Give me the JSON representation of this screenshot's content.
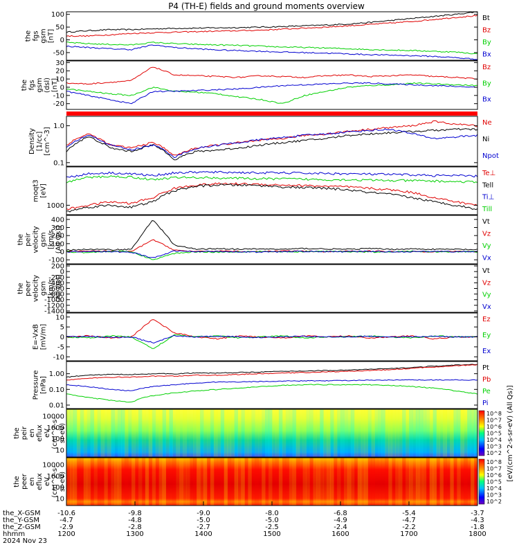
{
  "title": "P4 (TH-E) fields and ground moments overview",
  "date_label": "2024 Nov 23",
  "colors": {
    "black": "#000000",
    "red": "#e00000",
    "green": "#00d000",
    "blue": "#0000d0"
  },
  "xaxis": {
    "row_labels": [
      "the_X-GSM",
      "the_Y-GSM",
      "the_Z-GSM",
      "hhmm"
    ],
    "columns": [
      [
        "-10.6",
        "-4.7",
        "-2.9",
        "1200"
      ],
      [
        "-9.8",
        "-4.8",
        "-2.8",
        "1300"
      ],
      [
        "-9.0",
        "-5.0",
        "-2.7",
        "1400"
      ],
      [
        "-8.0",
        "-5.0",
        "-2.5",
        "1500"
      ],
      [
        "-6.8",
        "-4.9",
        "-2.4",
        "1600"
      ],
      [
        "-5.4",
        "-4.7",
        "-2.2",
        "1700"
      ],
      [
        "-3.7",
        "-4.3",
        "-1.8",
        "1800"
      ]
    ]
  },
  "chart_data": [
    {
      "type": "line",
      "ylabel": [
        "the",
        "fgs",
        "gsm",
        "[nT]"
      ],
      "ylim": [
        -80,
        110
      ],
      "ticks": [
        "100",
        "50",
        "0",
        "-50"
      ],
      "tick_values": [
        100,
        50,
        0,
        -50
      ],
      "series": [
        {
          "name": "Bt",
          "color": "#000000",
          "values": [
            30,
            36,
            40,
            40,
            43,
            45,
            46,
            47,
            48,
            50,
            52,
            55,
            58,
            62,
            68,
            76,
            84,
            92,
            100,
            110
          ]
        },
        {
          "name": "Bz",
          "color": "#e00000",
          "values": [
            15,
            15,
            20,
            25,
            28,
            30,
            32,
            34,
            36,
            38,
            42,
            46,
            50,
            55,
            60,
            66,
            72,
            80,
            88,
            95
          ]
        },
        {
          "name": "By",
          "color": "#00d000",
          "values": [
            -10,
            -15,
            -18,
            -20,
            -10,
            -15,
            -18,
            -20,
            -22,
            -25,
            -28,
            -30,
            -32,
            -35,
            -38,
            -40,
            -42,
            -45,
            -48,
            -55
          ]
        },
        {
          "name": "Bx",
          "color": "#0000d0",
          "values": [
            -25,
            -30,
            -35,
            -38,
            -20,
            -30,
            -35,
            -40,
            -42,
            -45,
            -48,
            -50,
            -52,
            -55,
            -58,
            -60,
            -62,
            -65,
            -70,
            -76
          ]
        }
      ]
    },
    {
      "type": "line",
      "ylabel": [
        "the",
        "fgs",
        "gsm",
        "(dsl)",
        "[nT]"
      ],
      "ylim": [
        -27,
        32
      ],
      "ticks": [
        "30",
        "20",
        "10",
        "0",
        "-10",
        "-20"
      ],
      "tick_values": [
        30,
        20,
        10,
        0,
        -10,
        -20
      ],
      "series": [
        {
          "name": "Bz",
          "color": "#e00000",
          "values": [
            5,
            4,
            6,
            8,
            25,
            15,
            14,
            13,
            12,
            14,
            13,
            12,
            14,
            15,
            13,
            14,
            15,
            13,
            12,
            10
          ]
        },
        {
          "name": "By",
          "color": "#00d000",
          "values": [
            -2,
            -5,
            -8,
            -10,
            0,
            -5,
            -6,
            -8,
            -12,
            -15,
            -20,
            -10,
            -5,
            0,
            2,
            3,
            5,
            4,
            3,
            2
          ]
        },
        {
          "name": "Bx",
          "color": "#0000d0",
          "values": [
            -5,
            -10,
            -15,
            -20,
            -5,
            -5,
            -4,
            -3,
            -2,
            0,
            2,
            3,
            4,
            5,
            5,
            4,
            3,
            2,
            1,
            0
          ]
        }
      ]
    },
    {
      "type": "line",
      "ylabel": [
        "Density",
        "[1/cc]",
        "[cm^-3]"
      ],
      "scale": "log",
      "ylim": [
        0.08,
        1.8
      ],
      "ticks": [
        "1.0",
        "0.1"
      ],
      "tick_values": [
        1.0,
        0.1
      ],
      "series": [
        {
          "name": "Ne",
          "color": "#e00000",
          "values": [
            0.3,
            0.6,
            0.3,
            0.25,
            0.35,
            0.15,
            0.25,
            0.3,
            0.35,
            0.4,
            0.45,
            0.55,
            0.6,
            0.7,
            0.8,
            0.9,
            1.0,
            1.3,
            1.1,
            1.0
          ]
        },
        {
          "name": "Ni",
          "color": "#000000",
          "values": [
            0.2,
            0.5,
            0.25,
            0.2,
            0.3,
            0.12,
            0.2,
            0.22,
            0.25,
            0.3,
            0.35,
            0.4,
            0.45,
            0.55,
            0.6,
            0.65,
            0.7,
            0.75,
            0.8,
            0.8
          ]
        },
        {
          "name": "Npot",
          "color": "#0000d0",
          "values": [
            0.25,
            0.55,
            0.3,
            0.22,
            0.3,
            0.14,
            0.24,
            0.3,
            0.35,
            0.42,
            0.48,
            0.55,
            0.6,
            0.68,
            0.75,
            0.8,
            0.6,
            0.45,
            0.5,
            0.55
          ]
        }
      ]
    },
    {
      "type": "line",
      "ylabel": [
        "moqt3",
        "[eV]"
      ],
      "scale": "log",
      "ylim": [
        600,
        8000
      ],
      "ticks": [
        "1000"
      ],
      "tick_values": [
        1000
      ],
      "series": [
        {
          "name": "Te⊥",
          "color": "#e00000",
          "values": [
            800,
            1000,
            1200,
            1100,
            1500,
            2500,
            3000,
            3200,
            3200,
            3100,
            3000,
            2900,
            2800,
            2700,
            2500,
            2300,
            2000,
            1500,
            1200,
            1000
          ]
        },
        {
          "name": "Tell",
          "color": "#000000",
          "values": [
            700,
            900,
            1000,
            900,
            1200,
            2200,
            2800,
            3000,
            3000,
            2900,
            2700,
            2600,
            2500,
            2300,
            2000,
            1800,
            1500,
            1200,
            1000,
            800
          ]
        },
        {
          "name": "Ti⊥",
          "color": "#0000d0",
          "values": [
            4500,
            5500,
            5800,
            5500,
            5000,
            5800,
            6000,
            6000,
            5900,
            5800,
            5800,
            5700,
            5600,
            5500,
            5400,
            5300,
            5200,
            5000,
            5000,
            4800
          ]
        },
        {
          "name": "Till",
          "color": "#00d000",
          "values": [
            3500,
            4500,
            4800,
            4600,
            4000,
            4500,
            4500,
            4400,
            4300,
            4200,
            4200,
            4100,
            4000,
            4000,
            3900,
            3800,
            3800,
            3700,
            3600,
            3500
          ]
        }
      ]
    },
    {
      "type": "line",
      "ylabel": [
        "the",
        "peir",
        "velocity",
        "gsm",
        "[km/s",
        "(All Qs)]"
      ],
      "ylim": [
        -150,
        450
      ],
      "ticks": [
        "400",
        "300",
        "200",
        "100",
        "0",
        "-100"
      ],
      "tick_values": [
        400,
        300,
        200,
        100,
        0,
        -100
      ],
      "series": [
        {
          "name": "Vt",
          "color": "#000000",
          "values": [
            20,
            30,
            25,
            30,
            400,
            80,
            30,
            40,
            30,
            35,
            30,
            40,
            35,
            30,
            40,
            30,
            35,
            30,
            30,
            25
          ]
        },
        {
          "name": "Vz",
          "color": "#e00000",
          "values": [
            0,
            10,
            5,
            0,
            150,
            20,
            0,
            10,
            5,
            0,
            10,
            5,
            0,
            5,
            10,
            0,
            5,
            0,
            5,
            0
          ]
        },
        {
          "name": "Vy",
          "color": "#00d000",
          "values": [
            0,
            -10,
            5,
            0,
            -100,
            -20,
            0,
            -5,
            0,
            5,
            -5,
            0,
            5,
            0,
            -5,
            0,
            5,
            0,
            0,
            0
          ]
        },
        {
          "name": "Vx",
          "color": "#0000d0",
          "values": [
            0,
            5,
            0,
            -5,
            -80,
            10,
            0,
            5,
            0,
            -5,
            0,
            5,
            0,
            0,
            5,
            0,
            0,
            5,
            0,
            0
          ]
        }
      ]
    },
    {
      "type": "line",
      "ylabel": [
        "the",
        "peer",
        "velocity",
        "gsm",
        "[km/s",
        "(All Qs)]"
      ],
      "ylim": [
        -1450,
        250
      ],
      "ticks": [
        "200",
        "0",
        "-200",
        "-400",
        "-600",
        "-800",
        "-1000",
        "-1200",
        "-1400"
      ],
      "tick_values": [
        200,
        0,
        -200,
        -400,
        -600,
        -800,
        -1000,
        -1200,
        -1400
      ],
      "series": [
        {
          "name": "Vt",
          "color": "#000000",
          "values": []
        },
        {
          "name": "Vz",
          "color": "#e00000",
          "values": []
        },
        {
          "name": "Vy",
          "color": "#00d000",
          "values": []
        },
        {
          "name": "Vx",
          "color": "#0000d0",
          "values": []
        }
      ]
    },
    {
      "type": "line",
      "ylabel": [
        "E=-VxB",
        "[mV/m]"
      ],
      "ylim": [
        -12,
        12
      ],
      "ticks": [
        "10",
        "5",
        "0",
        "-5",
        "-10"
      ],
      "tick_values": [
        10,
        5,
        0,
        -5,
        -10
      ],
      "series": [
        {
          "name": "Ez",
          "color": "#e00000",
          "values": [
            0,
            0.5,
            -0.5,
            0,
            9,
            2,
            0,
            -1,
            0.5,
            0,
            -0.5,
            0.5,
            0,
            0.5,
            -0.5,
            0,
            0.5,
            -1,
            0,
            0
          ]
        },
        {
          "name": "Ey",
          "color": "#00d000",
          "values": [
            0,
            -0.5,
            0.5,
            0,
            -6,
            1,
            0,
            0.5,
            -0.5,
            0,
            0.5,
            -0.5,
            0,
            0,
            0.5,
            0,
            -0.5,
            0.5,
            0,
            0
          ]
        },
        {
          "name": "Ex",
          "color": "#0000d0",
          "values": [
            0,
            0.3,
            -0.3,
            0,
            -3,
            0.5,
            0,
            0.3,
            0,
            -0.3,
            0,
            0.3,
            0,
            0,
            0.3,
            0,
            0,
            0.3,
            0,
            0
          ]
        }
      ]
    },
    {
      "type": "line",
      "ylabel": [
        "Pressure",
        "[nPa]"
      ],
      "scale": "log",
      "ylim": [
        0.006,
        6
      ],
      "ticks": [
        "1.00",
        "0.10",
        "0.01"
      ],
      "tick_values": [
        1.0,
        0.1,
        0.01
      ],
      "series": [
        {
          "name": "Pt",
          "color": "#000000",
          "values": [
            0.6,
            0.8,
            0.9,
            0.9,
            1.0,
            1.0,
            1.1,
            1.1,
            1.2,
            1.3,
            1.4,
            1.5,
            1.6,
            1.7,
            1.9,
            2.1,
            2.5,
            3.0,
            3.5,
            4.0
          ]
        },
        {
          "name": "Pb",
          "color": "#e00000",
          "values": [
            0.4,
            0.5,
            0.6,
            0.6,
            0.7,
            0.7,
            0.8,
            0.8,
            0.9,
            1.0,
            1.1,
            1.2,
            1.3,
            1.4,
            1.6,
            1.8,
            2.2,
            2.7,
            3.2,
            3.7
          ]
        },
        {
          "name": "Pe",
          "color": "#00d000",
          "values": [
            0.05,
            0.03,
            0.02,
            0.015,
            0.04,
            0.06,
            0.08,
            0.1,
            0.12,
            0.15,
            0.18,
            0.2,
            0.2,
            0.2,
            0.2,
            0.18,
            0.15,
            0.12,
            0.08,
            0.05
          ]
        },
        {
          "name": "Pi",
          "color": "#0000d0",
          "values": [
            0.2,
            0.15,
            0.1,
            0.08,
            0.15,
            0.2,
            0.25,
            0.3,
            0.3,
            0.32,
            0.34,
            0.35,
            0.36,
            0.37,
            0.38,
            0.39,
            0.4,
            0.4,
            0.4,
            0.4
          ]
        }
      ]
    },
    {
      "type": "heatmap",
      "ylabel": [
        "the",
        "peir",
        "en",
        "eflux",
        "eV",
        "(cm^2-s-",
        "sr-eV)"
      ],
      "ticks": [
        "10000",
        "1000",
        "100",
        "10"
      ],
      "tick_values": [
        10000,
        1000,
        100,
        10
      ],
      "colorbar": {
        "label": "[eV/(cm^2-s-sr-eV) (All Qs)]",
        "ticks": [
          "10^8",
          "10^7",
          "10^6",
          "10^5",
          "10^4",
          "10^3",
          "10^2"
        ]
      }
    },
    {
      "type": "heatmap",
      "ylabel": [
        "the",
        "peer",
        "en",
        "eflux",
        "eV",
        "(cm^2-s-",
        "sr-eV)"
      ],
      "ticks": [
        "10000",
        "1000",
        "100",
        "10"
      ],
      "tick_values": [
        10000,
        1000,
        100,
        10
      ],
      "colorbar": {
        "label": "[eV/(cm^2-s-sr-eV) (All Qs)]",
        "ticks": [
          "10^8",
          "10^7",
          "10^6",
          "10^5",
          "10^4",
          "10^3",
          "10^2"
        ]
      }
    }
  ]
}
